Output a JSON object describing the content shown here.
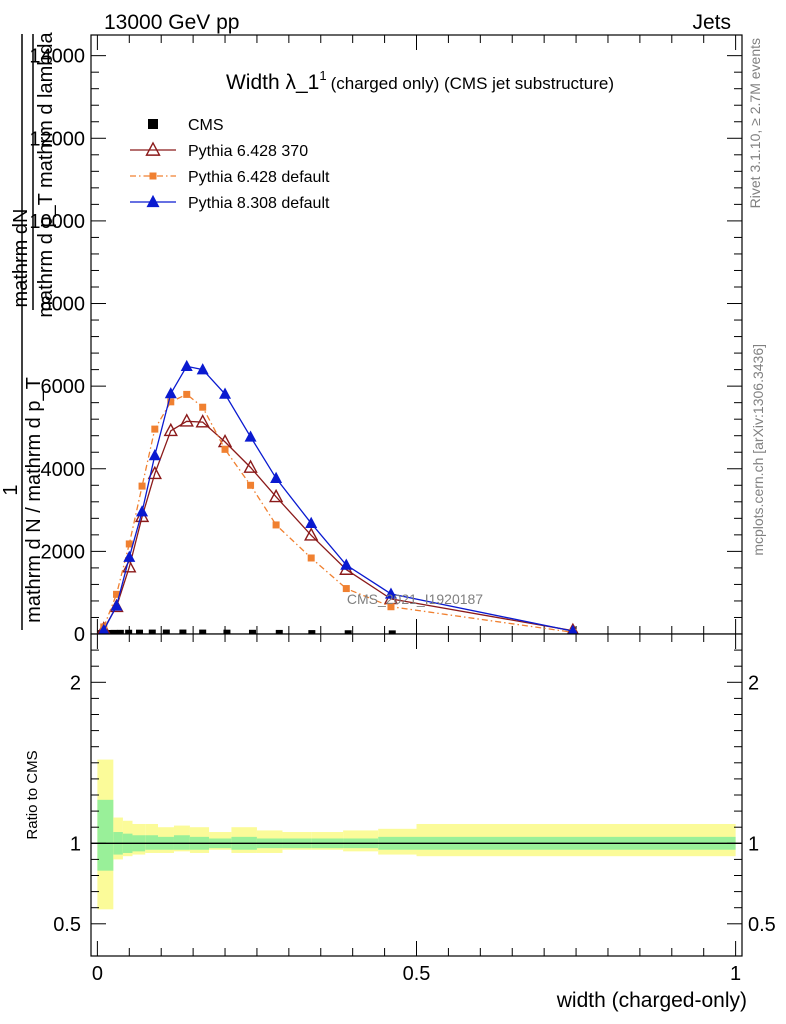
{
  "header": {
    "left": "13000 GeV pp",
    "right": "Jets"
  },
  "side": {
    "rivet": "Rivet 3.1.10, ≥ 2.7M events",
    "mcplots": "mcplots.cern.ch [arXiv:1306.3436]"
  },
  "watermark": "CMS_2021_I1920187",
  "chart_data": [
    {
      "type": "line",
      "title": "Width λ_1",
      "title_sup": "1",
      "subtitle": "(charged only) (CMS jet substructure)",
      "ylabel_line1": "mathrm dN",
      "ylabel_line2": "mathrm d p_T mathrm d lambda",
      "ylabel_line3": "1",
      "ylabel_line4": "mathrm d N / mathrm d p_T",
      "xlim": [
        -0.01,
        1.01
      ],
      "ylim": [
        0,
        14500
      ],
      "yticks": [
        {
          "v": 0,
          "label": "0"
        },
        {
          "v": 2000,
          "label": "2000"
        },
        {
          "v": 4000,
          "label": "4000"
        },
        {
          "v": 6000,
          "label": "6000"
        },
        {
          "v": 8000,
          "label": "8000"
        },
        {
          "v": 10000,
          "label": "10000"
        },
        {
          "v": 12000,
          "label": "12000"
        },
        {
          "v": 14000,
          "label": "14000"
        }
      ],
      "series": [
        {
          "name": "CMS",
          "color": "#000000",
          "marker": "square",
          "line": "none",
          "x": [
            0.006,
            0.016,
            0.026,
            0.036,
            0.049,
            0.066,
            0.086,
            0.108,
            0.134,
            0.165,
            0.203,
            0.243,
            0.285,
            0.336,
            0.393,
            0.462
          ],
          "y": [
            8,
            12,
            15,
            16,
            18,
            20,
            22,
            23,
            23,
            22,
            20,
            17,
            14,
            10,
            6,
            3
          ]
        },
        {
          "name": "Pythia 6.428 370",
          "color": "#8b1a1a",
          "marker": "triangle-open",
          "line": "solid",
          "x": [
            0.01,
            0.03,
            0.05,
            0.07,
            0.09,
            0.115,
            0.14,
            0.165,
            0.2,
            0.24,
            0.28,
            0.335,
            0.39,
            0.46,
            0.745
          ],
          "y": [
            120,
            660,
            1620,
            2840,
            3880,
            4920,
            5150,
            5130,
            4650,
            4030,
            3320,
            2390,
            1560,
            850,
            80
          ]
        },
        {
          "name": "Pythia 6.428 default",
          "color": "#f08030",
          "marker": "square",
          "line": "dashdot",
          "x": [
            0.01,
            0.03,
            0.05,
            0.07,
            0.09,
            0.115,
            0.14,
            0.165,
            0.2,
            0.24,
            0.28,
            0.335,
            0.39,
            0.46,
            0.745
          ],
          "y": [
            170,
            960,
            2180,
            3580,
            4960,
            5620,
            5800,
            5490,
            4470,
            3600,
            2640,
            1840,
            1100,
            660,
            40
          ]
        },
        {
          "name": "Pythia 8.308 default",
          "color": "#0a1ad0",
          "marker": "triangle",
          "line": "solid",
          "x": [
            0.01,
            0.03,
            0.05,
            0.07,
            0.09,
            0.115,
            0.14,
            0.165,
            0.2,
            0.24,
            0.28,
            0.335,
            0.39,
            0.46,
            0.745
          ],
          "y": [
            90,
            680,
            1860,
            2960,
            4320,
            5820,
            6480,
            6400,
            5810,
            4770,
            3770,
            2680,
            1670,
            970,
            70
          ]
        }
      ]
    },
    {
      "type": "area",
      "ylabel": "Ratio to CMS",
      "xlabel": "width (charged-only)",
      "xlim": [
        -0.01,
        1.01
      ],
      "ylim": [
        0.3,
        2.3
      ],
      "xticks": [
        {
          "v": 0,
          "label": "0"
        },
        {
          "v": 0.5,
          "label": "0.5"
        },
        {
          "v": 1,
          "label": "1"
        }
      ],
      "yticks": [
        {
          "v": 0.5,
          "label": "0.5"
        },
        {
          "v": 1,
          "label": "1"
        },
        {
          "v": 2,
          "label": "2"
        }
      ],
      "bin_edges": [
        0.0,
        0.025,
        0.04,
        0.055,
        0.075,
        0.095,
        0.12,
        0.145,
        0.175,
        0.21,
        0.25,
        0.29,
        0.335,
        0.385,
        0.44,
        0.5,
        1.0
      ],
      "stat_band": [
        [
          0.83,
          1.27
        ],
        [
          0.93,
          1.07
        ],
        [
          0.94,
          1.06
        ],
        [
          0.95,
          1.05
        ],
        [
          0.96,
          1.05
        ],
        [
          0.96,
          1.04
        ],
        [
          0.96,
          1.05
        ],
        [
          0.96,
          1.04
        ],
        [
          0.97,
          1.03
        ],
        [
          0.96,
          1.04
        ],
        [
          0.97,
          1.03
        ],
        [
          0.97,
          1.03
        ],
        [
          0.97,
          1.03
        ],
        [
          0.97,
          1.03
        ],
        [
          0.96,
          1.04
        ],
        [
          0.96,
          1.04
        ]
      ],
      "total_band": [
        [
          0.59,
          1.52
        ],
        [
          0.9,
          1.16
        ],
        [
          0.92,
          1.14
        ],
        [
          0.93,
          1.12
        ],
        [
          0.94,
          1.12
        ],
        [
          0.94,
          1.1
        ],
        [
          0.95,
          1.11
        ],
        [
          0.94,
          1.1
        ],
        [
          0.96,
          1.07
        ],
        [
          0.94,
          1.1
        ],
        [
          0.94,
          1.08
        ],
        [
          0.96,
          1.07
        ],
        [
          0.96,
          1.07
        ],
        [
          0.95,
          1.08
        ],
        [
          0.93,
          1.09
        ],
        [
          0.92,
          1.12
        ]
      ],
      "stat_color": "#99f099",
      "total_color": "#fbfb99"
    }
  ]
}
